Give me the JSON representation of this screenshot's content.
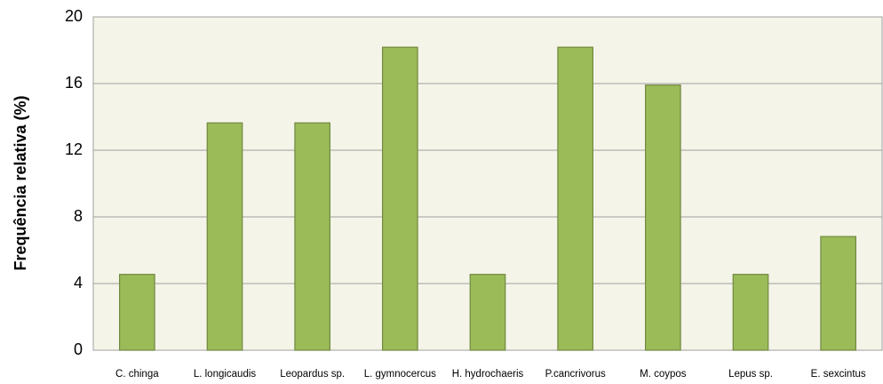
{
  "chart_data": {
    "type": "bar",
    "y_label": "Frequência relativa (%)",
    "categories": [
      "C. chinga",
      "L. longicaudis",
      "Leopardus sp.",
      "L. gymnocercus",
      "H. hydrochaeris",
      "P.cancrivorus",
      "M. coypos",
      "Lepus sp.",
      "E. sexcintus"
    ],
    "values": [
      4.55,
      13.64,
      13.64,
      18.18,
      4.55,
      18.18,
      15.91,
      4.55,
      6.82
    ],
    "color": "#9bbb59",
    "ylim": [
      0,
      20
    ],
    "yticks": [
      0,
      4,
      8,
      12,
      16,
      20
    ],
    "grid": true
  }
}
